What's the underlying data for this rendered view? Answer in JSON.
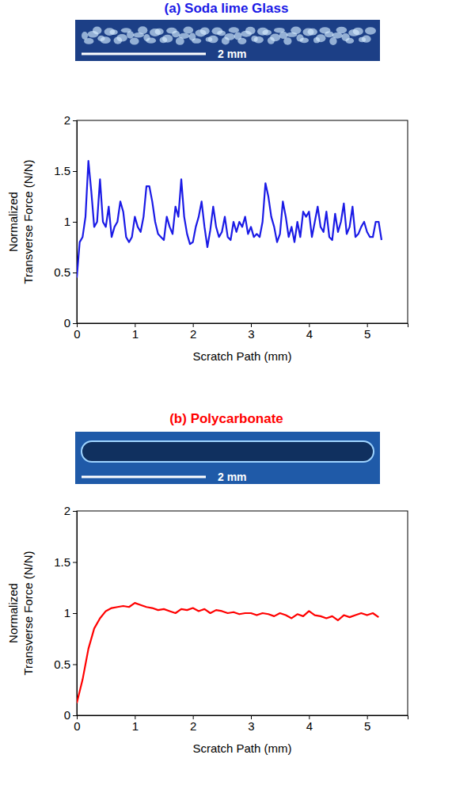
{
  "chart_data": [
    {
      "type": "line",
      "title": "(a) Soda lime Glass",
      "annotation": "2 mm",
      "x_label": "Scratch Path (mm)",
      "y_label": "Normalized Transverse Force (N/N)",
      "color": "#1a1ae6",
      "grid": false,
      "xlim": [
        0,
        5.7
      ],
      "xticks": [
        0,
        1,
        2,
        3,
        4,
        5
      ],
      "ylim": [
        0,
        2
      ],
      "yticks": [
        0,
        0.5,
        1,
        1.5,
        2
      ],
      "x": [
        0,
        0.05,
        0.1,
        0.15,
        0.2,
        0.25,
        0.3,
        0.35,
        0.4,
        0.45,
        0.5,
        0.55,
        0.6,
        0.65,
        0.7,
        0.75,
        0.8,
        0.85,
        0.9,
        0.95,
        1.0,
        1.05,
        1.1,
        1.15,
        1.2,
        1.25,
        1.3,
        1.35,
        1.4,
        1.45,
        1.5,
        1.55,
        1.6,
        1.65,
        1.7,
        1.75,
        1.8,
        1.85,
        1.9,
        1.95,
        2.0,
        2.05,
        2.1,
        2.15,
        2.2,
        2.25,
        2.3,
        2.35,
        2.4,
        2.45,
        2.5,
        2.55,
        2.6,
        2.65,
        2.7,
        2.75,
        2.8,
        2.85,
        2.9,
        2.95,
        3.0,
        3.05,
        3.1,
        3.15,
        3.2,
        3.25,
        3.3,
        3.35,
        3.4,
        3.45,
        3.5,
        3.55,
        3.6,
        3.65,
        3.7,
        3.75,
        3.8,
        3.85,
        3.9,
        3.95,
        4.0,
        4.05,
        4.1,
        4.15,
        4.2,
        4.25,
        4.3,
        4.35,
        4.4,
        4.45,
        4.5,
        4.55,
        4.6,
        4.65,
        4.7,
        4.75,
        4.8,
        4.85,
        4.9,
        4.95,
        5.0,
        5.05,
        5.1,
        5.15,
        5.2,
        5.25
      ],
      "values": [
        0.45,
        0.8,
        0.85,
        1.05,
        1.6,
        1.3,
        0.95,
        1.0,
        1.42,
        1.0,
        0.95,
        1.15,
        0.85,
        0.95,
        1.0,
        1.2,
        1.1,
        0.85,
        0.8,
        0.85,
        1.05,
        0.95,
        0.9,
        1.05,
        1.35,
        1.35,
        1.2,
        1.0,
        0.88,
        0.85,
        0.82,
        1.05,
        0.95,
        0.88,
        1.15,
        1.05,
        1.42,
        1.05,
        0.88,
        0.78,
        0.8,
        0.95,
        1.05,
        1.2,
        0.95,
        0.75,
        0.92,
        1.15,
        0.95,
        0.85,
        0.9,
        1.05,
        0.85,
        0.82,
        1.0,
        0.9,
        1.0,
        0.95,
        1.05,
        0.88,
        0.95,
        0.85,
        0.88,
        0.85,
        1.0,
        1.38,
        1.25,
        1.05,
        0.95,
        0.8,
        0.88,
        1.2,
        1.05,
        0.85,
        0.95,
        0.8,
        1.0,
        0.85,
        1.1,
        1.05,
        1.1,
        0.85,
        1.0,
        1.15,
        0.95,
        0.9,
        1.1,
        0.85,
        0.82,
        1.08,
        0.9,
        1.0,
        1.18,
        0.88,
        0.95,
        1.15,
        0.85,
        0.88,
        0.95,
        1.0,
        0.9,
        0.85,
        0.85,
        1.0,
        1.0,
        0.82
      ]
    },
    {
      "type": "line",
      "title": "(b) Polycarbonate",
      "annotation": "2 mm",
      "x_label": "Scratch Path (mm)",
      "y_label": "Normalized Transverse Force (N/N)",
      "color": "#ff0000",
      "grid": false,
      "xlim": [
        0,
        5.7
      ],
      "xticks": [
        0,
        1,
        2,
        3,
        4,
        5
      ],
      "ylim": [
        0,
        2
      ],
      "yticks": [
        0,
        0.5,
        1,
        1.5,
        2
      ],
      "x": [
        0,
        0.1,
        0.2,
        0.3,
        0.4,
        0.5,
        0.6,
        0.7,
        0.8,
        0.9,
        1.0,
        1.1,
        1.2,
        1.3,
        1.4,
        1.5,
        1.6,
        1.7,
        1.8,
        1.9,
        2.0,
        2.1,
        2.2,
        2.3,
        2.4,
        2.5,
        2.6,
        2.7,
        2.8,
        2.9,
        3.0,
        3.1,
        3.2,
        3.3,
        3.4,
        3.5,
        3.6,
        3.7,
        3.8,
        3.9,
        4.0,
        4.1,
        4.2,
        4.3,
        4.4,
        4.5,
        4.6,
        4.7,
        4.8,
        4.9,
        5.0,
        5.1,
        5.2
      ],
      "values": [
        0.12,
        0.35,
        0.65,
        0.85,
        0.95,
        1.02,
        1.05,
        1.06,
        1.07,
        1.06,
        1.1,
        1.08,
        1.06,
        1.05,
        1.03,
        1.04,
        1.02,
        1.0,
        1.04,
        1.03,
        1.05,
        1.02,
        1.04,
        1.0,
        1.03,
        1.02,
        1.0,
        1.01,
        0.99,
        1.0,
        1.0,
        0.98,
        1.0,
        0.99,
        0.97,
        1.0,
        0.98,
        0.95,
        0.99,
        0.97,
        1.02,
        0.98,
        0.97,
        0.95,
        0.97,
        0.93,
        0.98,
        0.96,
        0.98,
        1.0,
        0.98,
        1.0,
        0.96
      ]
    }
  ]
}
